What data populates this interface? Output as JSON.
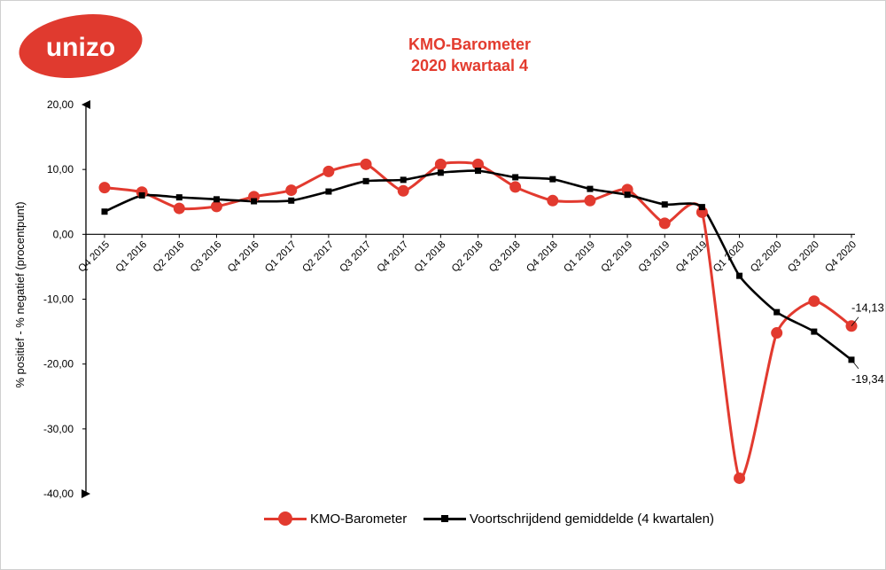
{
  "brand": {
    "logo_text": "unizo",
    "logo_color": "#e03a2f"
  },
  "header": {
    "title_line1": "KMO-Barometer",
    "title_line2": "2020 kwartaal 4",
    "title_color": "#e33b2e"
  },
  "chart_data": {
    "type": "line",
    "title": "KMO-Barometer 2020 kwartaal 4",
    "xlabel": "",
    "ylabel": "% positief - % negatief (procentpunt)",
    "ylim": [
      -40,
      20
    ],
    "yticks": [
      20,
      10,
      0,
      -10,
      -20,
      -30,
      -40
    ],
    "ytick_labels": [
      "20,00",
      "10,00",
      "0,00",
      "-10,00",
      "-20,00",
      "-30,00",
      "-40,00"
    ],
    "grid": false,
    "legend_position": "bottom",
    "categories": [
      "Q4 2015",
      "Q1 2016",
      "Q2 2016",
      "Q3 2016",
      "Q4 2016",
      "Q1 2017",
      "Q2 2017",
      "Q3 2017",
      "Q4 2017",
      "Q1 2018",
      "Q2 2018",
      "Q3 2018",
      "Q4 2018",
      "Q1 2019",
      "Q2 2019",
      "Q3 2019",
      "Q4 2019",
      "Q1 2020",
      "Q2 2020",
      "Q3 2020",
      "Q4 2020"
    ],
    "series": [
      {
        "name": "KMO-Barometer",
        "color": "#e23a2f",
        "marker": "circle",
        "values": [
          7.2,
          6.5,
          4.0,
          4.3,
          5.8,
          6.8,
          9.7,
          10.8,
          6.7,
          10.8,
          10.8,
          7.3,
          5.2,
          5.2,
          6.9,
          1.7,
          3.4,
          -37.6,
          -15.2,
          -10.3,
          -14.13
        ]
      },
      {
        "name": "Voortschrijdend gemiddelde (4 kwartalen)",
        "color": "#000000",
        "marker": "square",
        "values": [
          3.5,
          6.0,
          5.7,
          5.4,
          5.1,
          5.2,
          6.6,
          8.2,
          8.4,
          9.5,
          9.8,
          8.8,
          8.5,
          7.0,
          6.1,
          4.6,
          4.2,
          -6.4,
          -12.0,
          -15.0,
          -19.34
        ]
      }
    ],
    "annotations": [
      {
        "series": 0,
        "index": 20,
        "text": "-14,13"
      },
      {
        "series": 1,
        "index": 20,
        "text": "-19,34"
      }
    ]
  }
}
